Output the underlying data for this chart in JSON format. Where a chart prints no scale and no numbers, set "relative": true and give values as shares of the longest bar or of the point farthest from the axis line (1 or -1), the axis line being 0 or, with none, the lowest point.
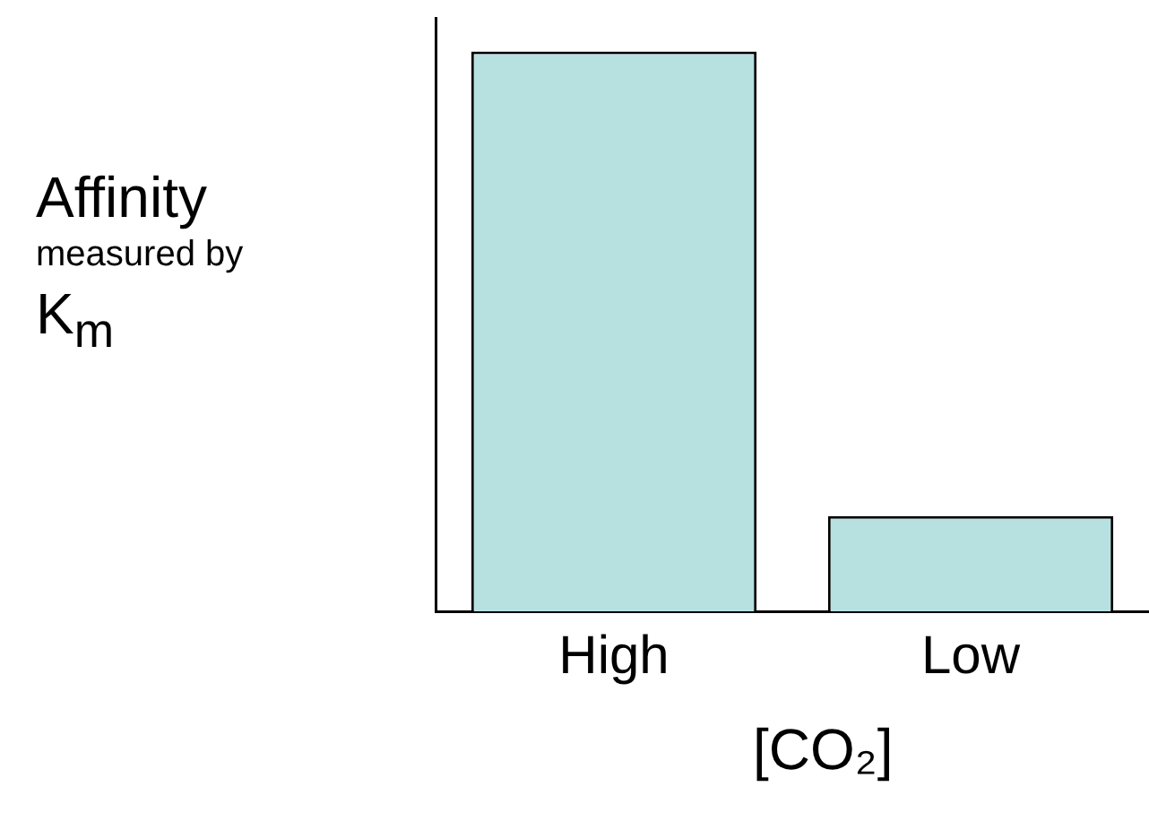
{
  "chart_data": {
    "type": "bar",
    "relative": true,
    "categories": [
      "High",
      "Low"
    ],
    "values": [
      1,
      0.17
    ],
    "color": "#b7e1e1",
    "xlabel": "[CO₂]",
    "ylabel": "Affinity\nmeasured by\nK$_{m}$",
    "grid": false,
    "legend": false
  }
}
